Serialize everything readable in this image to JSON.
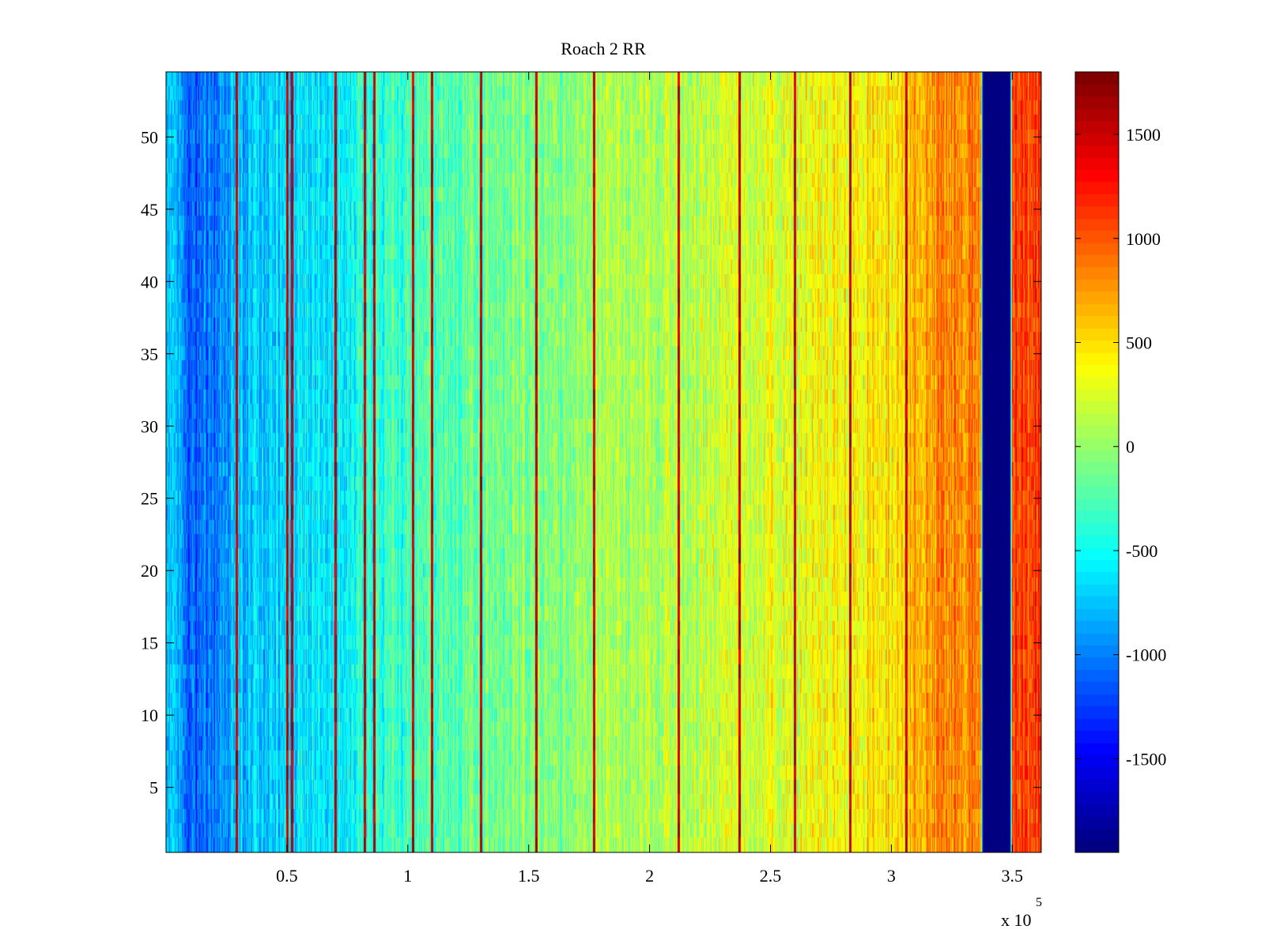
{
  "chart_data": {
    "type": "heatmap",
    "title": "Roach 2 RR",
    "xlabel": "",
    "ylabel": "",
    "x_exponent_label": "x 10",
    "x_exponent_power": "5",
    "xlim": [
      0,
      3.62
    ],
    "ylim": [
      0.5,
      54.5
    ],
    "x_ticks": [
      0.5,
      1,
      1.5,
      2,
      2.5,
      3,
      3.5
    ],
    "x_tick_labels": [
      "0.5",
      "1",
      "1.5",
      "2",
      "2.5",
      "3",
      "3.5"
    ],
    "y_ticks": [
      5,
      10,
      15,
      20,
      25,
      30,
      35,
      40,
      45,
      50
    ],
    "y_tick_labels": [
      "5",
      "10",
      "15",
      "20",
      "25",
      "30",
      "35",
      "40",
      "45",
      "50"
    ],
    "rows": 54,
    "colormap": "jet",
    "color_range": [
      -1950,
      1800
    ],
    "colorbar_ticks": [
      1500,
      1000,
      500,
      0,
      -500,
      -1000,
      -1500
    ],
    "colorbar_tick_labels": [
      "1500",
      "1000",
      "500",
      "0",
      "-500",
      "-1000",
      "-1500"
    ],
    "column_trend_x": [
      0,
      0.1,
      0.2,
      0.3,
      0.5,
      0.7,
      0.9,
      1.2,
      1.5,
      1.8,
      2.1,
      2.4,
      2.7,
      3.0,
      3.2,
      3.37,
      3.38,
      3.49,
      3.5,
      3.62
    ],
    "column_trend_value": [
      -700,
      -1150,
      -1000,
      -800,
      -700,
      -550,
      -350,
      -200,
      -50,
      50,
      150,
      250,
      350,
      550,
      800,
      900,
      -1950,
      -1950,
      1050,
      1150
    ],
    "spike_x": [
      0.29,
      0.5,
      0.52,
      0.7,
      0.82,
      0.86,
      1.02,
      1.1,
      1.3,
      1.53,
      1.77,
      2.12,
      2.37,
      2.6,
      2.83,
      3.06
    ],
    "spike_value": 1800
  }
}
